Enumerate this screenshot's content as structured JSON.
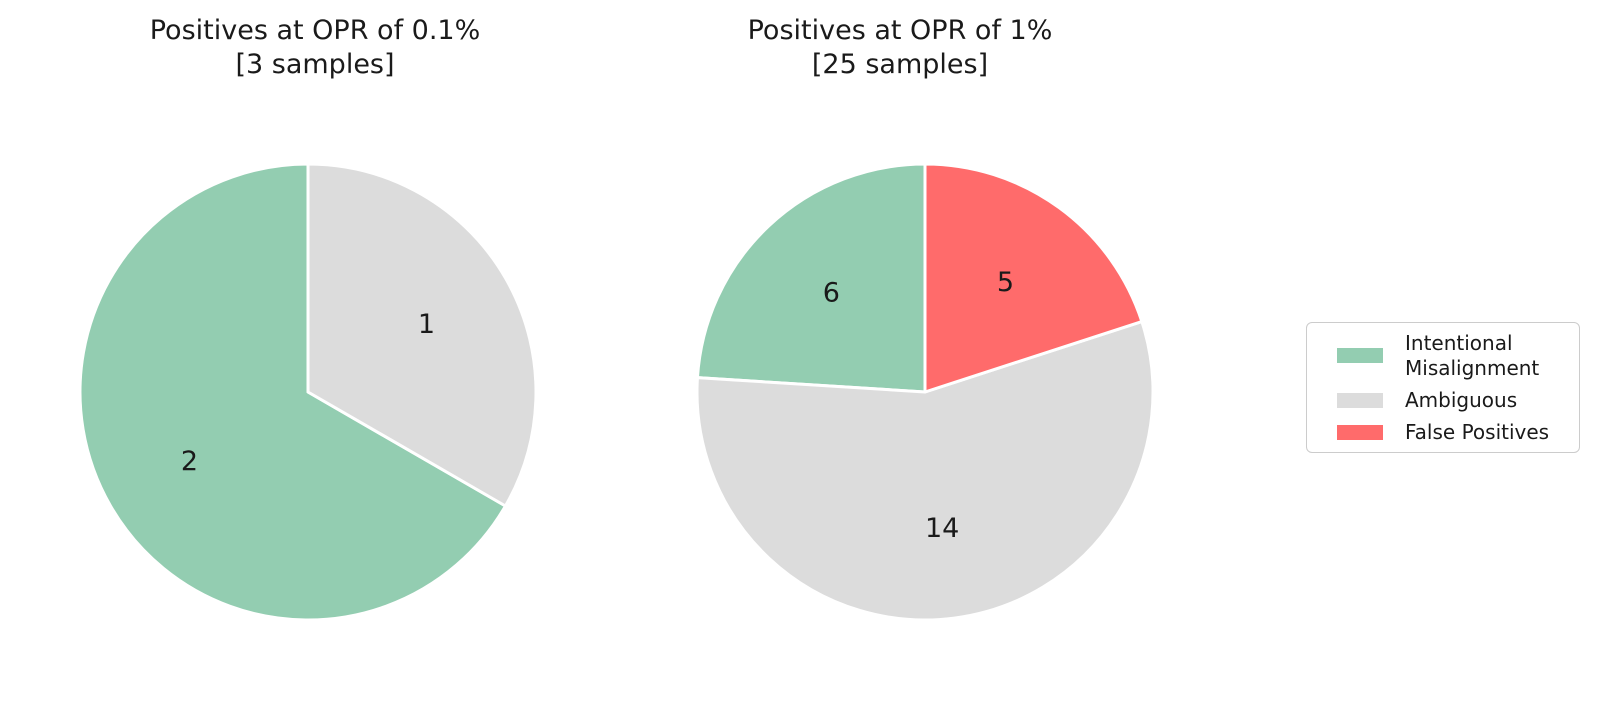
{
  "figure": {
    "background": "#ffffff",
    "text_color": "#1a1a1a"
  },
  "chart_data": [
    {
      "type": "pie",
      "title": "Positives at OPR of 0.1%",
      "subtitle": "[3 samples]",
      "categories": [
        "Intentional Misalignment",
        "Ambiguous"
      ],
      "values": [
        2,
        1
      ],
      "colors": [
        "#93cdb1",
        "#dcdcdc"
      ],
      "start_angle_deg": 90,
      "direction": "counterclockwise",
      "slice_label_radius": 0.6,
      "wedge_edge_color": "#ffffff",
      "legend_position": "right"
    },
    {
      "type": "pie",
      "title": "Positives at OPR of 1%",
      "subtitle": "[25 samples]",
      "categories": [
        "Intentional Misalignment",
        "Ambiguous",
        "False Positives"
      ],
      "values": [
        6,
        14,
        5
      ],
      "colors": [
        "#93cdb1",
        "#dcdcdc",
        "#ff6b6b"
      ],
      "start_angle_deg": 90,
      "direction": "counterclockwise",
      "slice_label_radius": 0.6,
      "wedge_edge_color": "#ffffff",
      "legend_position": "right"
    }
  ],
  "legend": {
    "border_color": "#cccccc",
    "background": "#ffffff",
    "items": [
      {
        "label": "Intentional\nMisalignment",
        "color": "#93cdb1"
      },
      {
        "label": "Ambiguous",
        "color": "#dcdcdc"
      },
      {
        "label": "False Positives",
        "color": "#ff6b6b"
      }
    ]
  }
}
